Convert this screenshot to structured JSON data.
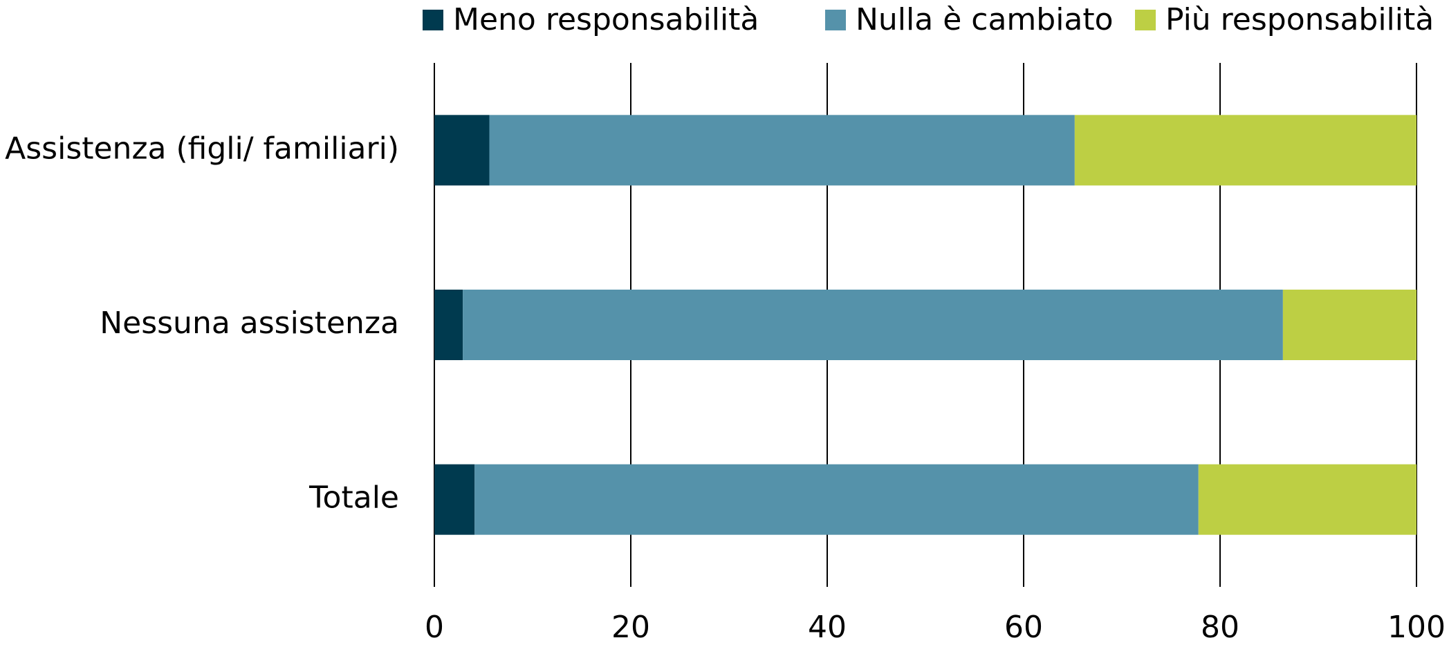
{
  "chart_data": {
    "type": "stacked_barh",
    "categories": [
      "Assistenza (figli/ familiari)",
      "Nessuna assistenza",
      "Totale"
    ],
    "series": [
      {
        "name": "Meno responsabilità",
        "color": "#003a4f",
        "values": [
          5.6,
          2.9,
          4.1
        ]
      },
      {
        "name": "Nulla è cambiato",
        "color": "#5592aa",
        "values": [
          59.6,
          83.5,
          73.7
        ]
      },
      {
        "name": "Più responsabilità",
        "color": "#bdcf44",
        "values": [
          34.8,
          13.6,
          22.2
        ]
      }
    ],
    "xlim": [
      0,
      100
    ],
    "xticks": [
      0,
      20,
      40,
      60,
      80,
      100
    ],
    "grid": true,
    "legend": "top"
  }
}
